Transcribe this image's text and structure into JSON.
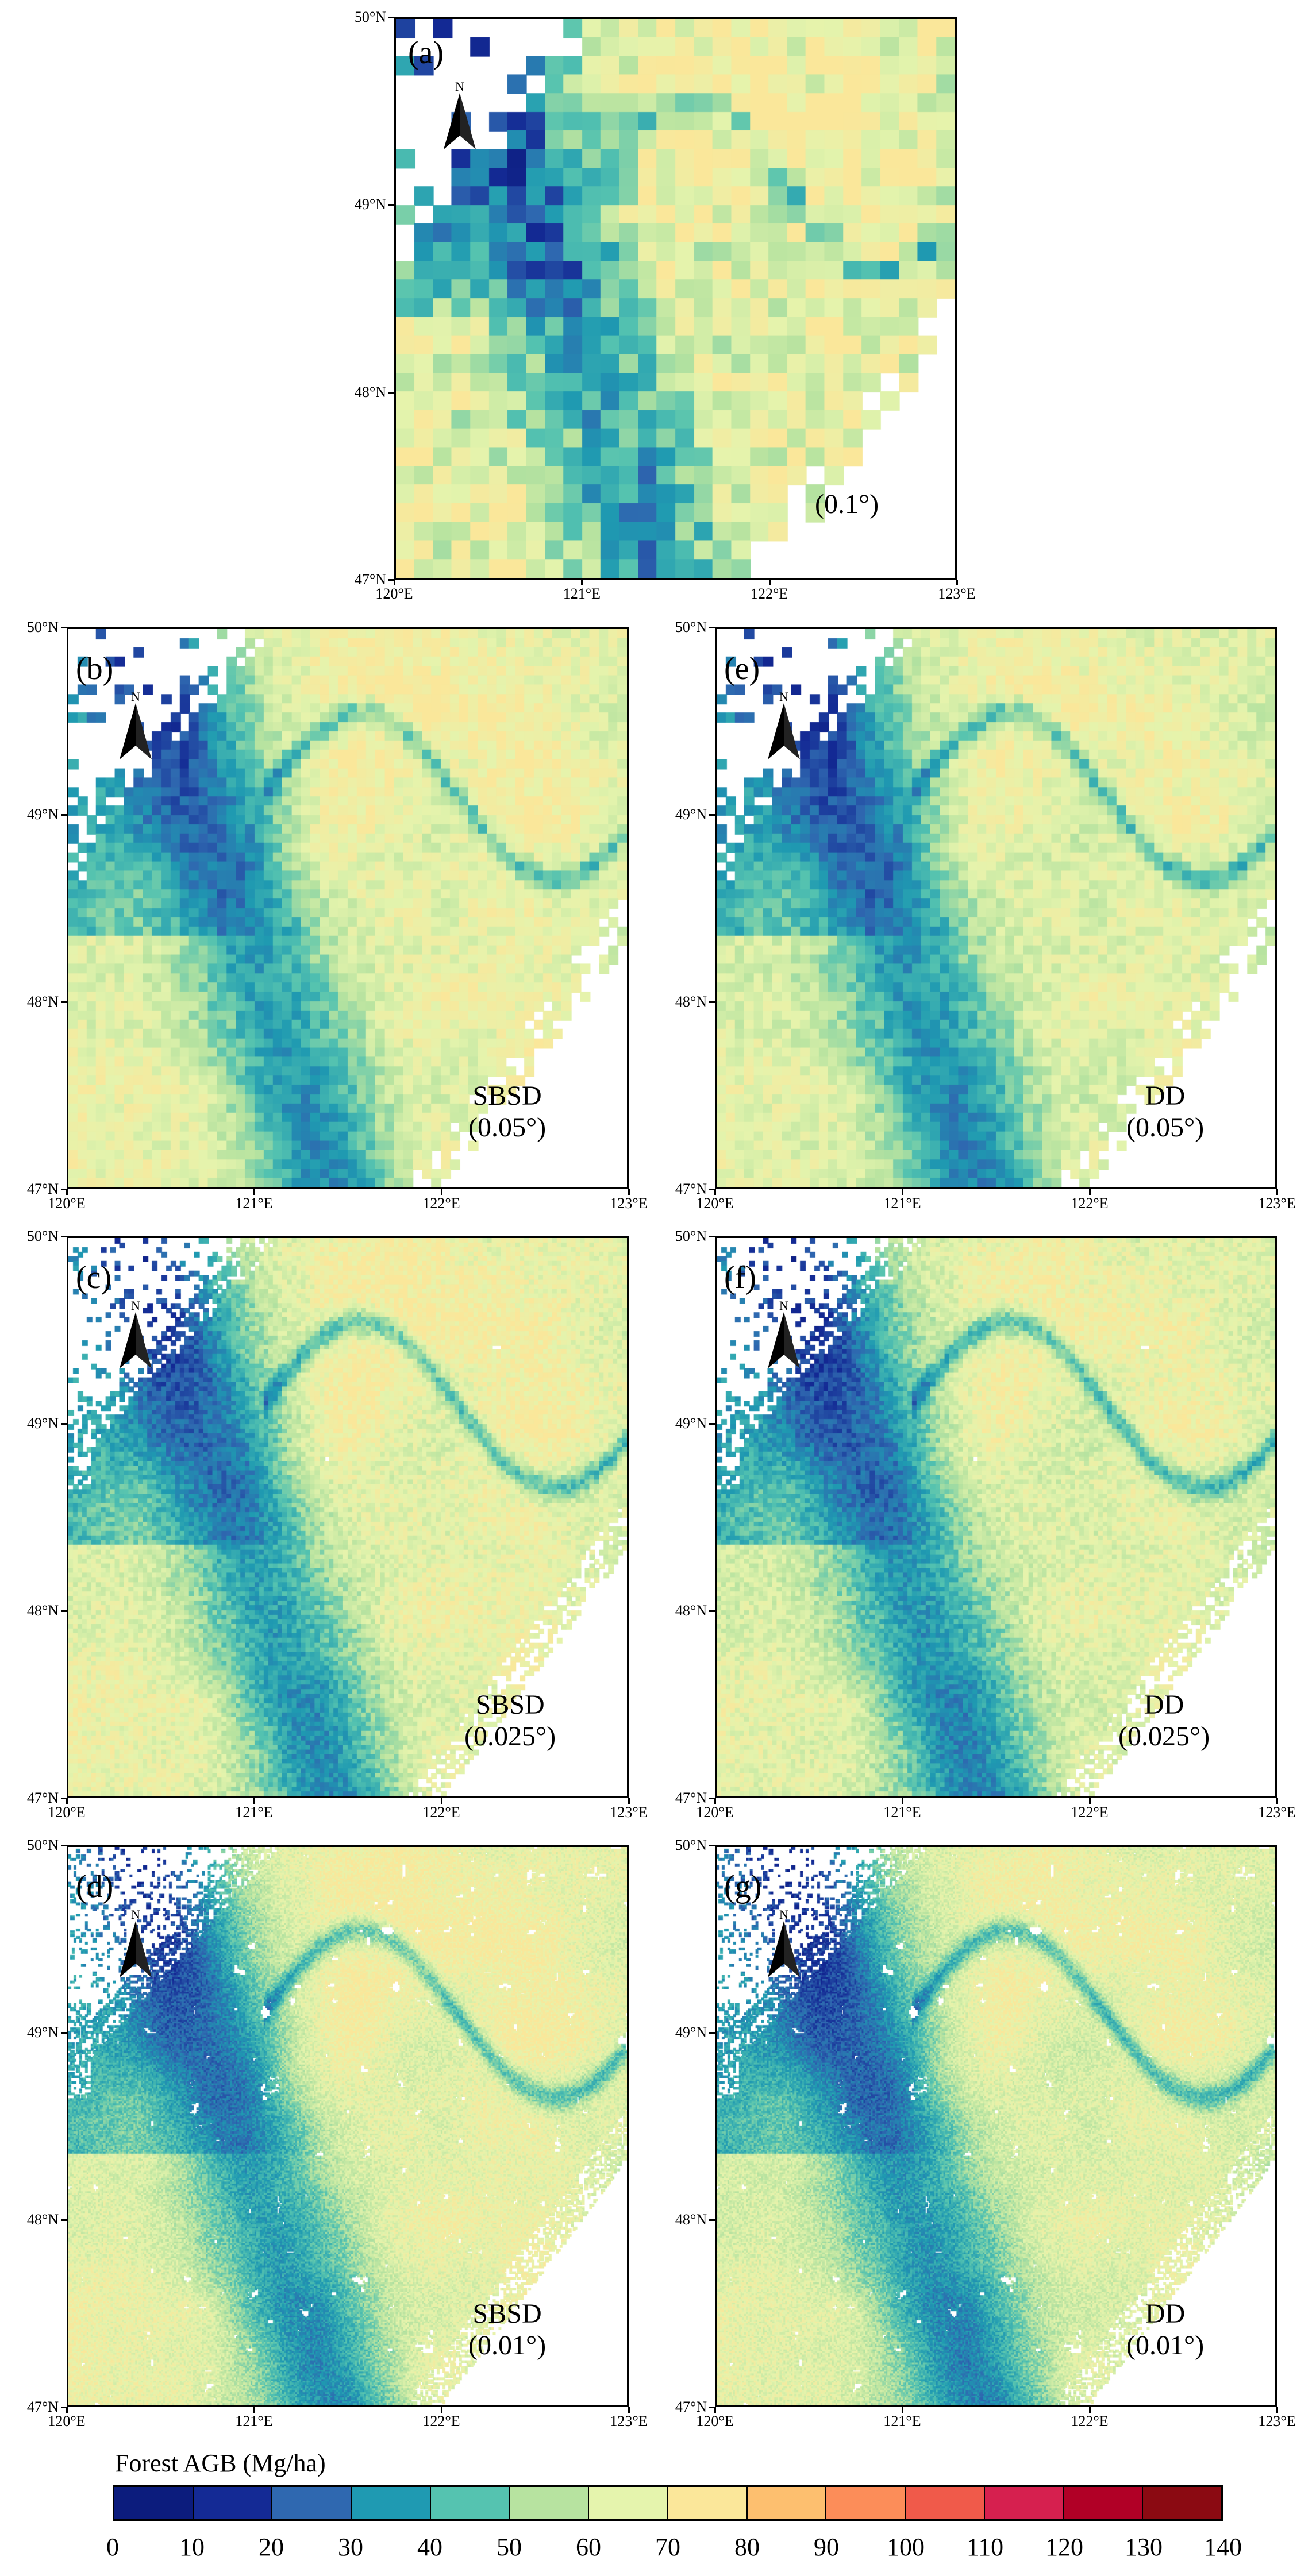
{
  "panels": [
    {
      "id": "a",
      "label": "(a)",
      "method": "",
      "resolution": "(0.1°)",
      "cell": 0.1
    },
    {
      "id": "b",
      "label": "(b)",
      "method": "SBSD",
      "resolution": "(0.05°)",
      "cell": 0.05
    },
    {
      "id": "e",
      "label": "(e)",
      "method": "DD",
      "resolution": "(0.05°)",
      "cell": 0.05
    },
    {
      "id": "c",
      "label": "(c)",
      "method": "SBSD",
      "resolution": "(0.025°)",
      "cell": 0.025
    },
    {
      "id": "f",
      "label": "(f)",
      "method": "DD",
      "resolution": "(0.025°)",
      "cell": 0.025
    },
    {
      "id": "d",
      "label": "(d)",
      "method": "SBSD",
      "resolution": "(0.01°)",
      "cell": 0.01
    },
    {
      "id": "g",
      "label": "(g)",
      "method": "DD",
      "resolution": "(0.01°)",
      "cell": 0.01
    }
  ],
  "axes": {
    "lon_ticks": [
      "120°E",
      "121°E",
      "122°E",
      "123°E"
    ],
    "lat_ticks": [
      "50°N",
      "49°N",
      "48°N",
      "47°N"
    ],
    "lon_range": [
      120,
      123
    ],
    "lat_range": [
      47,
      50
    ]
  },
  "north_arrow": {
    "letter": "N",
    "icon": "north-arrow-icon"
  },
  "colorbar": {
    "title": "Forest AGB (Mg/ha)",
    "ticks": [
      "0",
      "10",
      "20",
      "30",
      "40",
      "50",
      "60",
      "70",
      "80",
      "90",
      "100",
      "110",
      "120",
      "130",
      "140"
    ],
    "colors": [
      "#0c1c7d",
      "#142a95",
      "#2f68b0",
      "#1f9ab2",
      "#55c3b0",
      "#b7e3a0",
      "#e5f4ad",
      "#fbe79a",
      "#fdbf6f",
      "#fc8d59",
      "#f05a4a",
      "#d6204f",
      "#b10026",
      "#8b0a12"
    ]
  }
}
